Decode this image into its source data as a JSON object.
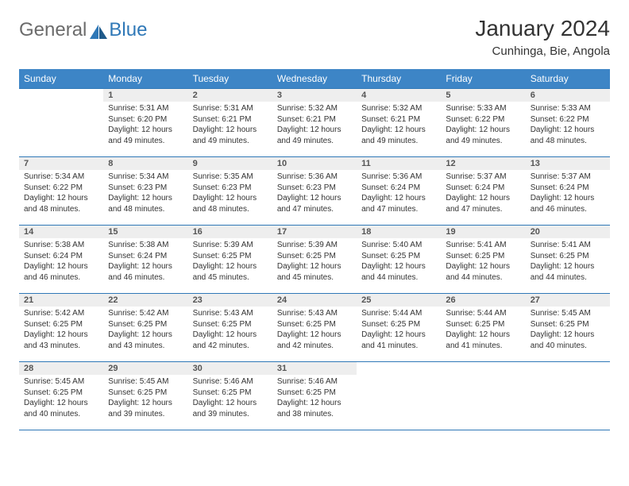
{
  "brand": {
    "part1": "General",
    "part2": "Blue"
  },
  "title": "January 2024",
  "location": "Cunhinga, Bie, Angola",
  "colors": {
    "header_bg": "#3d85c6",
    "border": "#2f78b7",
    "daynum_bg": "#eeeeee",
    "text": "#333333",
    "logo_gray": "#6b6b6b",
    "logo_blue": "#2f78b7"
  },
  "weekdays": [
    "Sunday",
    "Monday",
    "Tuesday",
    "Wednesday",
    "Thursday",
    "Friday",
    "Saturday"
  ],
  "weeks": [
    [
      {
        "n": "",
        "sr": "",
        "ss": "",
        "dl": ""
      },
      {
        "n": "1",
        "sr": "Sunrise: 5:31 AM",
        "ss": "Sunset: 6:20 PM",
        "dl": "Daylight: 12 hours and 49 minutes."
      },
      {
        "n": "2",
        "sr": "Sunrise: 5:31 AM",
        "ss": "Sunset: 6:21 PM",
        "dl": "Daylight: 12 hours and 49 minutes."
      },
      {
        "n": "3",
        "sr": "Sunrise: 5:32 AM",
        "ss": "Sunset: 6:21 PM",
        "dl": "Daylight: 12 hours and 49 minutes."
      },
      {
        "n": "4",
        "sr": "Sunrise: 5:32 AM",
        "ss": "Sunset: 6:21 PM",
        "dl": "Daylight: 12 hours and 49 minutes."
      },
      {
        "n": "5",
        "sr": "Sunrise: 5:33 AM",
        "ss": "Sunset: 6:22 PM",
        "dl": "Daylight: 12 hours and 49 minutes."
      },
      {
        "n": "6",
        "sr": "Sunrise: 5:33 AM",
        "ss": "Sunset: 6:22 PM",
        "dl": "Daylight: 12 hours and 48 minutes."
      }
    ],
    [
      {
        "n": "7",
        "sr": "Sunrise: 5:34 AM",
        "ss": "Sunset: 6:22 PM",
        "dl": "Daylight: 12 hours and 48 minutes."
      },
      {
        "n": "8",
        "sr": "Sunrise: 5:34 AM",
        "ss": "Sunset: 6:23 PM",
        "dl": "Daylight: 12 hours and 48 minutes."
      },
      {
        "n": "9",
        "sr": "Sunrise: 5:35 AM",
        "ss": "Sunset: 6:23 PM",
        "dl": "Daylight: 12 hours and 48 minutes."
      },
      {
        "n": "10",
        "sr": "Sunrise: 5:36 AM",
        "ss": "Sunset: 6:23 PM",
        "dl": "Daylight: 12 hours and 47 minutes."
      },
      {
        "n": "11",
        "sr": "Sunrise: 5:36 AM",
        "ss": "Sunset: 6:24 PM",
        "dl": "Daylight: 12 hours and 47 minutes."
      },
      {
        "n": "12",
        "sr": "Sunrise: 5:37 AM",
        "ss": "Sunset: 6:24 PM",
        "dl": "Daylight: 12 hours and 47 minutes."
      },
      {
        "n": "13",
        "sr": "Sunrise: 5:37 AM",
        "ss": "Sunset: 6:24 PM",
        "dl": "Daylight: 12 hours and 46 minutes."
      }
    ],
    [
      {
        "n": "14",
        "sr": "Sunrise: 5:38 AM",
        "ss": "Sunset: 6:24 PM",
        "dl": "Daylight: 12 hours and 46 minutes."
      },
      {
        "n": "15",
        "sr": "Sunrise: 5:38 AM",
        "ss": "Sunset: 6:24 PM",
        "dl": "Daylight: 12 hours and 46 minutes."
      },
      {
        "n": "16",
        "sr": "Sunrise: 5:39 AM",
        "ss": "Sunset: 6:25 PM",
        "dl": "Daylight: 12 hours and 45 minutes."
      },
      {
        "n": "17",
        "sr": "Sunrise: 5:39 AM",
        "ss": "Sunset: 6:25 PM",
        "dl": "Daylight: 12 hours and 45 minutes."
      },
      {
        "n": "18",
        "sr": "Sunrise: 5:40 AM",
        "ss": "Sunset: 6:25 PM",
        "dl": "Daylight: 12 hours and 44 minutes."
      },
      {
        "n": "19",
        "sr": "Sunrise: 5:41 AM",
        "ss": "Sunset: 6:25 PM",
        "dl": "Daylight: 12 hours and 44 minutes."
      },
      {
        "n": "20",
        "sr": "Sunrise: 5:41 AM",
        "ss": "Sunset: 6:25 PM",
        "dl": "Daylight: 12 hours and 44 minutes."
      }
    ],
    [
      {
        "n": "21",
        "sr": "Sunrise: 5:42 AM",
        "ss": "Sunset: 6:25 PM",
        "dl": "Daylight: 12 hours and 43 minutes."
      },
      {
        "n": "22",
        "sr": "Sunrise: 5:42 AM",
        "ss": "Sunset: 6:25 PM",
        "dl": "Daylight: 12 hours and 43 minutes."
      },
      {
        "n": "23",
        "sr": "Sunrise: 5:43 AM",
        "ss": "Sunset: 6:25 PM",
        "dl": "Daylight: 12 hours and 42 minutes."
      },
      {
        "n": "24",
        "sr": "Sunrise: 5:43 AM",
        "ss": "Sunset: 6:25 PM",
        "dl": "Daylight: 12 hours and 42 minutes."
      },
      {
        "n": "25",
        "sr": "Sunrise: 5:44 AM",
        "ss": "Sunset: 6:25 PM",
        "dl": "Daylight: 12 hours and 41 minutes."
      },
      {
        "n": "26",
        "sr": "Sunrise: 5:44 AM",
        "ss": "Sunset: 6:25 PM",
        "dl": "Daylight: 12 hours and 41 minutes."
      },
      {
        "n": "27",
        "sr": "Sunrise: 5:45 AM",
        "ss": "Sunset: 6:25 PM",
        "dl": "Daylight: 12 hours and 40 minutes."
      }
    ],
    [
      {
        "n": "28",
        "sr": "Sunrise: 5:45 AM",
        "ss": "Sunset: 6:25 PM",
        "dl": "Daylight: 12 hours and 40 minutes."
      },
      {
        "n": "29",
        "sr": "Sunrise: 5:45 AM",
        "ss": "Sunset: 6:25 PM",
        "dl": "Daylight: 12 hours and 39 minutes."
      },
      {
        "n": "30",
        "sr": "Sunrise: 5:46 AM",
        "ss": "Sunset: 6:25 PM",
        "dl": "Daylight: 12 hours and 39 minutes."
      },
      {
        "n": "31",
        "sr": "Sunrise: 5:46 AM",
        "ss": "Sunset: 6:25 PM",
        "dl": "Daylight: 12 hours and 38 minutes."
      },
      {
        "n": "",
        "sr": "",
        "ss": "",
        "dl": ""
      },
      {
        "n": "",
        "sr": "",
        "ss": "",
        "dl": ""
      },
      {
        "n": "",
        "sr": "",
        "ss": "",
        "dl": ""
      }
    ]
  ]
}
